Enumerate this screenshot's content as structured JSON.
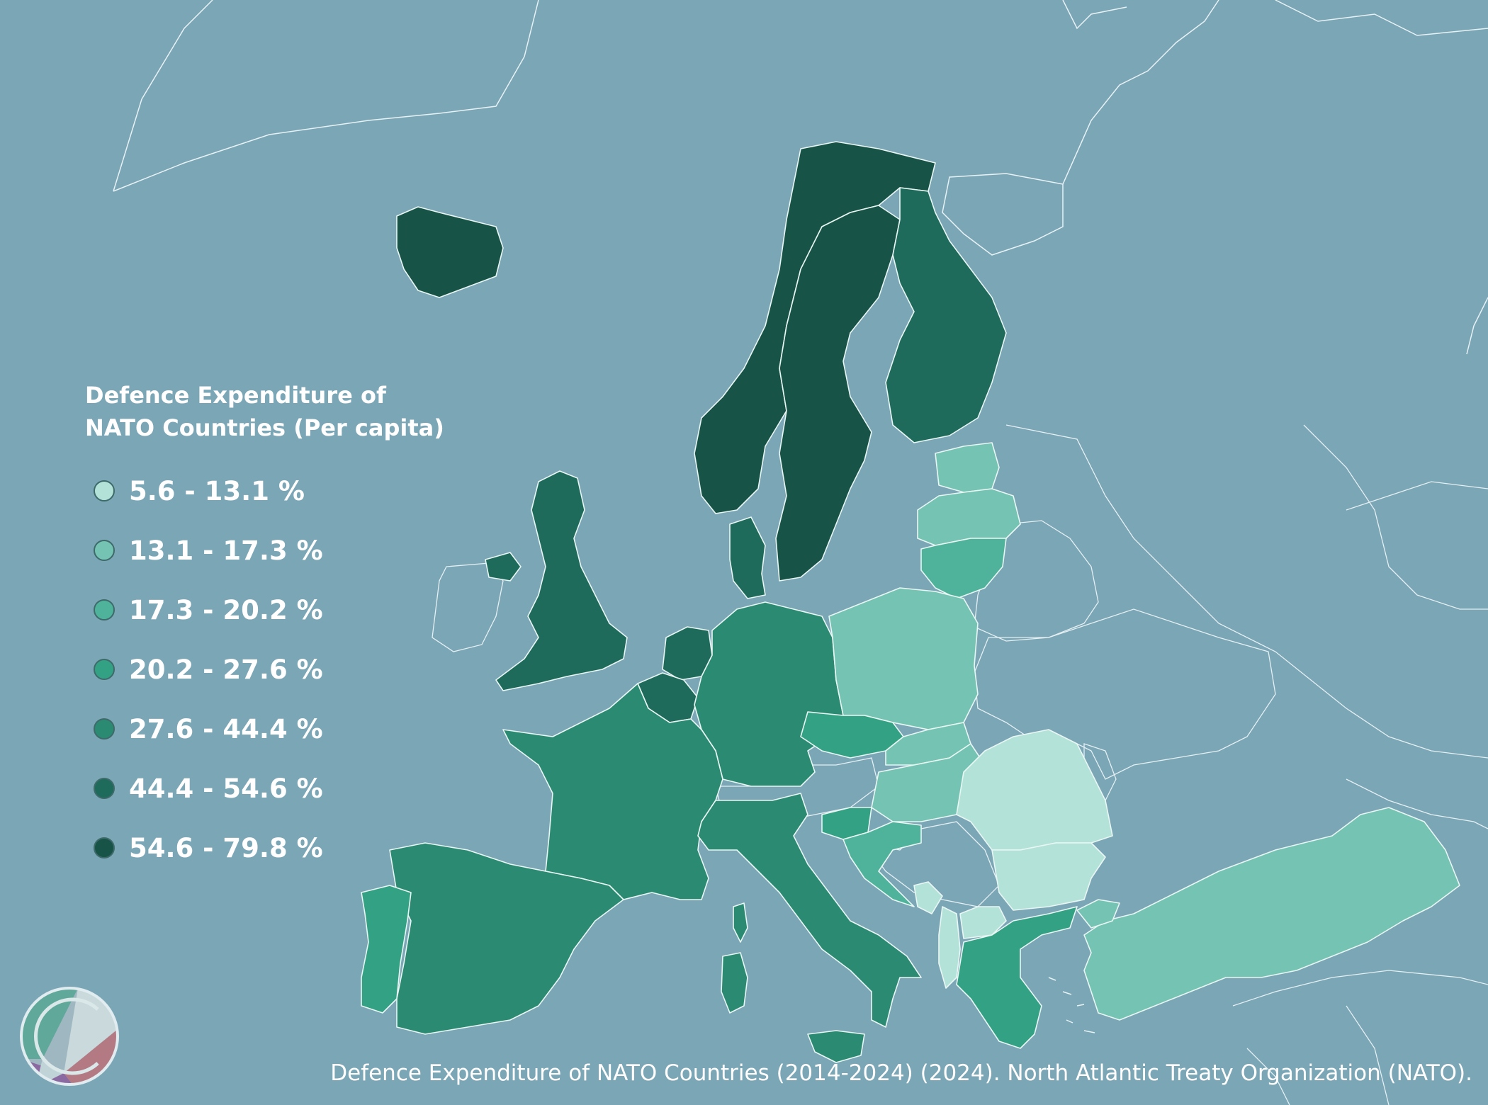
{
  "legend": {
    "title": "Defence Expenditure of\nNATO Countries (Per capita)",
    "classes": [
      {
        "label": "5.6 - 13.1 %",
        "color": "#b3e3d8"
      },
      {
        "label": "13.1 - 17.3 %",
        "color": "#75c4b3"
      },
      {
        "label": "17.3 - 20.2 %",
        "color": "#4fb39b"
      },
      {
        "label": "20.2 - 27.6 %",
        "color": "#33a184"
      },
      {
        "label": "27.6 - 44.4 %",
        "color": "#2b8a72"
      },
      {
        "label": "44.4 - 54.6 %",
        "color": "#1e6b5b"
      },
      {
        "label": "54.6 - 79.8 %",
        "color": "#175447"
      }
    ]
  },
  "map": {
    "background_color": "#7aa6b6",
    "countries": [
      {
        "name": "Iceland",
        "class": 6
      },
      {
        "name": "Norway",
        "class": 6
      },
      {
        "name": "Sweden",
        "class": 6
      },
      {
        "name": "Finland",
        "class": 5
      },
      {
        "name": "Estonia",
        "class": 1
      },
      {
        "name": "Latvia",
        "class": 1
      },
      {
        "name": "Lithuania",
        "class": 2
      },
      {
        "name": "United Kingdom",
        "class": 5
      },
      {
        "name": "Denmark",
        "class": 5
      },
      {
        "name": "Netherlands",
        "class": 5
      },
      {
        "name": "Belgium",
        "class": 5
      },
      {
        "name": "Germany",
        "class": 4
      },
      {
        "name": "Poland",
        "class": 1
      },
      {
        "name": "Czechia",
        "class": 3
      },
      {
        "name": "Slovakia",
        "class": 1
      },
      {
        "name": "Hungary",
        "class": 1
      },
      {
        "name": "France",
        "class": 4
      },
      {
        "name": "Spain",
        "class": 4
      },
      {
        "name": "Portugal",
        "class": 3
      },
      {
        "name": "Italy",
        "class": 4
      },
      {
        "name": "Slovenia",
        "class": 3
      },
      {
        "name": "Croatia",
        "class": 2
      },
      {
        "name": "Romania",
        "class": 0
      },
      {
        "name": "Bulgaria",
        "class": 0
      },
      {
        "name": "Greece",
        "class": 3
      },
      {
        "name": "Albania",
        "class": 0
      },
      {
        "name": "North Macedonia",
        "class": 0
      },
      {
        "name": "Montenegro",
        "class": 0
      },
      {
        "name": "Turkey",
        "class": 1
      }
    ]
  },
  "source": "Defence Expenditure of NATO Countries (2014-2024) (2024).  North Atlantic Treaty Organization (NATO)."
}
